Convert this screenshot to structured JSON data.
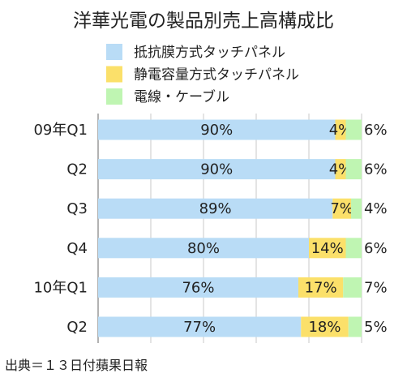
{
  "chart_data": {
    "type": "bar",
    "orientation": "horizontal",
    "stacked": true,
    "normalized_percent": true,
    "title": "洋華光電の製品別売上高構成比",
    "categories": [
      "09年Q1",
      "Q2",
      "Q3",
      "Q4",
      "10年Q1",
      "Q2"
    ],
    "series": [
      {
        "name": "抵抗膜方式タッチパネル",
        "color": "#b9dcf6",
        "values": [
          90,
          90,
          89,
          80,
          76,
          77
        ],
        "labels": [
          "90%",
          "90%",
          "89%",
          "80%",
          "76%",
          "77%"
        ]
      },
      {
        "name": "静電容量方式タッチパネル",
        "color": "#fbe06a",
        "values": [
          4,
          4,
          7,
          14,
          17,
          18
        ],
        "labels": [
          "4%",
          "4%",
          "7%",
          "14%",
          "17%",
          "18%"
        ]
      },
      {
        "name": "電線・ケーブル",
        "color": "#bff5b2",
        "values": [
          6,
          6,
          4,
          6,
          7,
          5
        ],
        "labels": [
          "6%",
          "6%",
          "4%",
          "6%",
          "7%",
          "5%"
        ]
      }
    ],
    "xlim": [
      0,
      100
    ],
    "grid": true,
    "legend_position": "top-right",
    "source": "出典＝１３日付蘋果日報"
  }
}
